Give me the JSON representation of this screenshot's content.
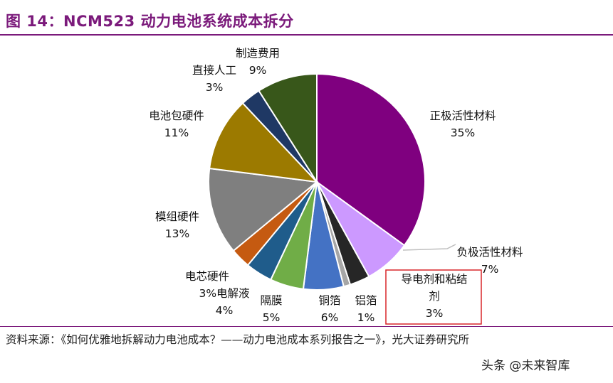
{
  "figure": {
    "title": "图 14：NCM523 动力电池系统成本拆分",
    "source": "资料来源：《如何优雅地拆解动力电池成本？——动力电池成本系列报告之一》，光大证券研究所",
    "watermark": "头条 @未来智库"
  },
  "chart_data": {
    "type": "pie",
    "categories": [
      "正极活性材料",
      "负极活性材料",
      "导电剂和粘结剂",
      "铝箔",
      "铜箔",
      "隔膜",
      "电解液",
      "电芯硬件",
      "模组硬件",
      "电池包硬件",
      "直接人工",
      "制造费用"
    ],
    "values": [
      35,
      7,
      3,
      1,
      6,
      5,
      4,
      3,
      13,
      11,
      3,
      9
    ],
    "value_labels": [
      "35%",
      "7%",
      "3%",
      "1%",
      "6%",
      "5%",
      "4%",
      "3%",
      "13%",
      "11%",
      "3%",
      "9%"
    ],
    "colors": [
      "#7f007f",
      "#cc99ff",
      "#262626",
      "#a6a6a6",
      "#4472c4",
      "#70ad47",
      "#1f5c8b",
      "#c55a11",
      "#7f7f7f",
      "#9c7a00",
      "#1f3864",
      "#38571a"
    ],
    "label_lines": [
      [
        "正极活性材料",
        "35%"
      ],
      [
        "负极活性材料",
        "7%"
      ],
      [
        "导电剂和粘结",
        "剂",
        "3%"
      ],
      [
        "铝箔",
        "1%"
      ],
      [
        "铜箔",
        "6%"
      ],
      [
        "隔膜",
        "5%"
      ],
      [
        "3%电解液",
        "4%"
      ],
      [
        "电芯硬件"
      ],
      [
        "模组硬件",
        "13%"
      ],
      [
        "电池包硬件",
        "11%"
      ],
      [
        "直接人工",
        "3%"
      ],
      [
        "制造费用",
        "9%"
      ]
    ],
    "highlighted": "导电剂和粘结剂",
    "start_angle": "12 o'clock",
    "direction": "clockwise"
  }
}
